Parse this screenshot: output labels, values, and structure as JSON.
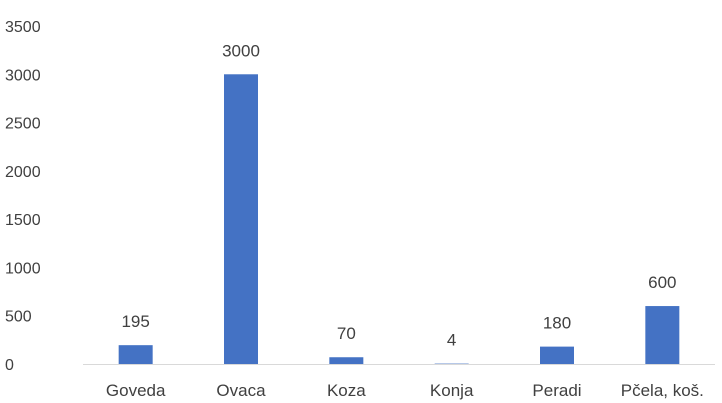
{
  "chart_data": {
    "type": "bar",
    "title": "",
    "xlabel": "",
    "ylabel": "",
    "categories": [
      "Goveda",
      "Ovaca",
      "Koza",
      "Konja",
      "Peradi",
      "Pčela, koš."
    ],
    "values": [
      195,
      3000,
      70,
      4,
      180,
      600
    ],
    "data_labels": [
      "195",
      "3000",
      "70",
      "4",
      "180",
      "600"
    ],
    "ylim": [
      0,
      3500
    ],
    "yticks": [
      0,
      500,
      1000,
      1500,
      2000,
      2500,
      3000,
      3500
    ],
    "ytick_labels": [
      "0",
      "500",
      "1000",
      "1500",
      "2000",
      "2500",
      "3000",
      "3500"
    ],
    "grid": false,
    "legend": "none",
    "colors": {
      "bar": "#4472c4",
      "text": "#404040",
      "axis": "#d9d9d9"
    }
  }
}
